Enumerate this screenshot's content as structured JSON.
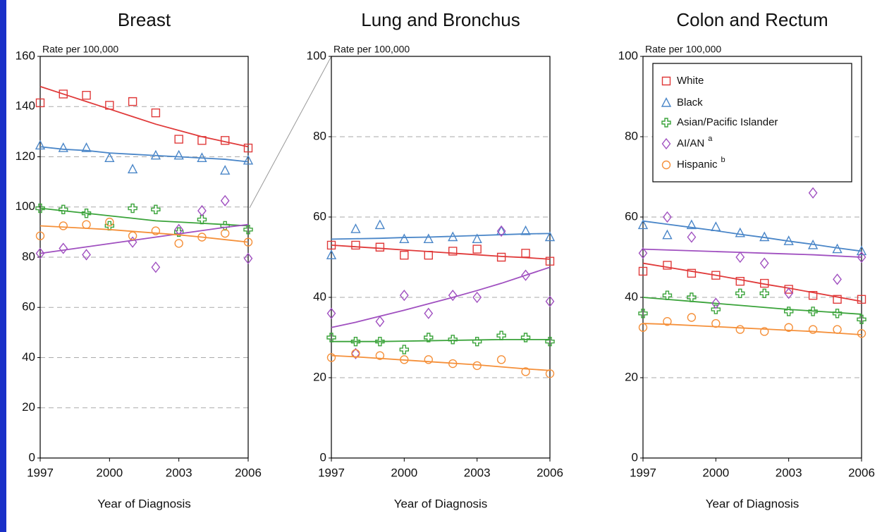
{
  "chart_data": [
    {
      "type": "scatter-trend",
      "title": "Breast",
      "ylabel": "Rate per 100,000",
      "xlabel": "Year of Diagnosis",
      "x": [
        1997,
        1998,
        1999,
        2000,
        2001,
        2002,
        2003,
        2004,
        2005,
        2006
      ],
      "xlim": [
        1997,
        2006
      ],
      "xticks": [
        1997,
        2000,
        2003,
        2006
      ],
      "ylim": [
        0,
        160
      ],
      "yticks": [
        0,
        20,
        40,
        60,
        80,
        100,
        120,
        140,
        160
      ],
      "grid": true,
      "series": [
        {
          "color": "#e03a3a",
          "marker": "square",
          "values": [
            141.5,
            145,
            144.5,
            140.5,
            142,
            137.5,
            127,
            126.5,
            126.5,
            123.5
          ],
          "trend": [
            148,
            145,
            142,
            139,
            136,
            133,
            130.5,
            128,
            126,
            124
          ]
        },
        {
          "color": "#4a86c8",
          "marker": "triangle",
          "values": [
            124.5,
            123.5,
            123.5,
            119.5,
            115,
            120.5,
            120.5,
            119.5,
            114.5,
            118.5
          ],
          "trend": [
            124,
            123,
            122.5,
            121.5,
            121,
            120.5,
            120,
            119.5,
            119,
            118
          ]
        },
        {
          "color": "#3aa33a",
          "marker": "plus",
          "values": [
            99.5,
            99,
            97.5,
            92.5,
            99.5,
            99,
            90,
            95,
            92.5,
            91
          ],
          "trend": [
            99.5,
            98.5,
            97.5,
            96.5,
            95.5,
            94.5,
            94,
            93.5,
            93,
            92.5
          ]
        },
        {
          "color": "#a050c0",
          "marker": "diamond",
          "values": [
            81.5,
            83.5,
            81,
            null,
            86,
            76,
            91,
            98.5,
            102.5,
            79.5
          ],
          "trend": [
            81.5,
            82.8,
            84.1,
            85.4,
            86.7,
            88,
            89.3,
            90.6,
            91.9,
            93
          ]
        },
        {
          "color": "#f5903a",
          "marker": "circle",
          "values": [
            88.5,
            92.5,
            93,
            94,
            88.5,
            90.5,
            85.5,
            88,
            89.5,
            86
          ],
          "trend": [
            92.5,
            92,
            91.5,
            91,
            90.3,
            89.6,
            88.9,
            88,
            87,
            86
          ]
        }
      ]
    },
    {
      "type": "scatter-trend",
      "title": "Lung and Bronchus",
      "ylabel": "Rate per 100,000",
      "xlabel": "Year of Diagnosis",
      "x": [
        1997,
        1998,
        1999,
        2000,
        2001,
        2002,
        2003,
        2004,
        2005,
        2006
      ],
      "xlim": [
        1997,
        2006
      ],
      "xticks": [
        1997,
        2000,
        2003,
        2006
      ],
      "ylim": [
        0,
        100
      ],
      "yticks": [
        0,
        20,
        40,
        60,
        80,
        100
      ],
      "grid": true,
      "series": [
        {
          "color": "#e03a3a",
          "marker": "square",
          "values": [
            53,
            53,
            52.5,
            50.5,
            50.5,
            51.5,
            52,
            50,
            51,
            49
          ],
          "trend": [
            53,
            52.6,
            52.2,
            51.8,
            51.4,
            51,
            50.6,
            50.2,
            49.9,
            49.5
          ]
        },
        {
          "color": "#4a86c8",
          "marker": "triangle",
          "values": [
            50.5,
            57,
            58,
            54.5,
            54.5,
            55,
            54.5,
            56.5,
            56.5,
            55
          ],
          "trend": [
            54.5,
            54.6,
            54.7,
            54.9,
            55,
            55.2,
            55.4,
            55.6,
            55.8,
            55.9
          ]
        },
        {
          "color": "#3aa33a",
          "marker": "plus",
          "values": [
            30,
            29,
            29,
            27,
            30,
            29.5,
            29,
            30.5,
            30,
            29
          ],
          "trend": [
            29,
            29,
            29,
            29.1,
            29.2,
            29.3,
            29.4,
            29.5,
            29.5,
            29.5
          ]
        },
        {
          "color": "#a050c0",
          "marker": "diamond",
          "values": [
            36,
            26,
            34,
            40.5,
            36,
            40.5,
            40,
            56.5,
            45.5,
            39
          ],
          "trend": [
            32.5,
            33.8,
            35.3,
            36.8,
            38.4,
            40,
            41.7,
            43.5,
            45.5,
            47.5
          ]
        },
        {
          "color": "#f5903a",
          "marker": "circle",
          "values": [
            25,
            26,
            25.5,
            24.5,
            24.5,
            23.5,
            23,
            24.5,
            21.5,
            21
          ],
          "trend": [
            25.5,
            25.2,
            24.8,
            24.4,
            24,
            23.6,
            23.2,
            22.7,
            22.2,
            21.8
          ]
        }
      ]
    },
    {
      "type": "scatter-trend",
      "title": "Colon and Rectum",
      "ylabel": "Rate per 100,000",
      "xlabel": "Year of Diagnosis",
      "x": [
        1997,
        1998,
        1999,
        2000,
        2001,
        2002,
        2003,
        2004,
        2005,
        2006
      ],
      "xlim": [
        1997,
        2006
      ],
      "xticks": [
        1997,
        2000,
        2003,
        2006
      ],
      "ylim": [
        0,
        100
      ],
      "yticks": [
        0,
        20,
        40,
        60,
        80,
        100
      ],
      "grid": true,
      "legend": "upper left",
      "series": [
        {
          "name": "White",
          "color": "#e03a3a",
          "marker": "square",
          "values": [
            46.5,
            48,
            46,
            45.5,
            44,
            43.5,
            42,
            40.5,
            39.5,
            39.5
          ],
          "trend": [
            48.5,
            47.5,
            46.5,
            45.5,
            44.4,
            43.3,
            42.3,
            41.2,
            40.1,
            39
          ]
        },
        {
          "name": "Black",
          "color": "#4a86c8",
          "marker": "triangle",
          "values": [
            58,
            55.5,
            58,
            57.5,
            56,
            55,
            54,
            53,
            52,
            51.5
          ],
          "trend": [
            59,
            58.2,
            57.4,
            56.6,
            55.7,
            54.9,
            54,
            53.2,
            52.3,
            51.5
          ]
        },
        {
          "name": "Asian/Pacific Islander",
          "color": "#3aa33a",
          "marker": "plus",
          "values": [
            36,
            40.5,
            40,
            37,
            41,
            41,
            36.5,
            36.5,
            36,
            34.5
          ],
          "trend": [
            40,
            39.5,
            39,
            38.5,
            38,
            37.5,
            37,
            36.6,
            36.2,
            35.8
          ]
        },
        {
          "name": "AI/AN",
          "note": "a",
          "color": "#a050c0",
          "marker": "diamond",
          "values": [
            51,
            60,
            55,
            38.5,
            50,
            48.5,
            41,
            66,
            44.5,
            50
          ],
          "trend": [
            52,
            51.8,
            51.6,
            51.4,
            51.2,
            51,
            50.8,
            50.6,
            50.3,
            50
          ]
        },
        {
          "name": "Hispanic",
          "note": "b",
          "color": "#f5903a",
          "marker": "circle",
          "values": [
            32.5,
            34,
            35,
            33.5,
            32,
            31.5,
            32.5,
            32,
            32,
            31
          ],
          "trend": [
            33.5,
            33.3,
            33,
            32.7,
            32.4,
            32.1,
            31.8,
            31.5,
            31.1,
            30.7
          ]
        }
      ]
    }
  ]
}
